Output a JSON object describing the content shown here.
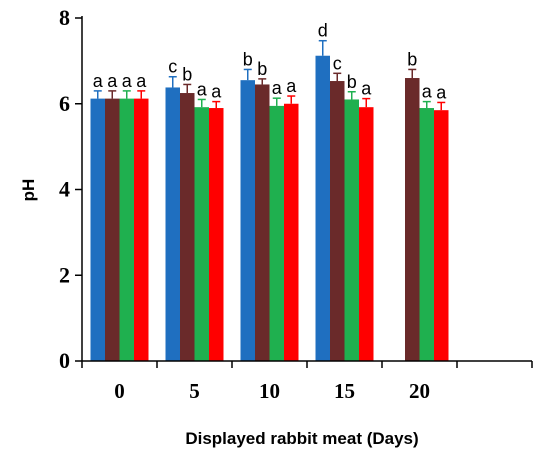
{
  "chart_data": {
    "type": "bar",
    "title": "",
    "xlabel": "Displayed rabbit meat (Days)",
    "ylabel": "pH",
    "ylim": [
      0,
      8
    ],
    "yticks": [
      "0",
      "2",
      "4",
      "6",
      "8"
    ],
    "categories": [
      "0",
      "5",
      "10",
      "15",
      "20"
    ],
    "grid": false,
    "legend": "none",
    "series": [
      {
        "color": "#1f6fc0",
        "values": [
          6.12,
          6.38,
          6.55,
          7.12,
          null
        ],
        "errors": [
          0.18,
          0.25,
          0.25,
          0.35,
          null
        ],
        "letters": [
          "a",
          "c",
          "b",
          "d",
          ""
        ]
      },
      {
        "color": "#6a2a2a",
        "values": [
          6.12,
          6.25,
          6.45,
          6.53,
          6.6
        ],
        "errors": [
          0.18,
          0.2,
          0.13,
          0.18,
          0.2
        ],
        "letters": [
          "a",
          "b",
          "b",
          "c",
          "b"
        ]
      },
      {
        "color": "#1fb04f",
        "values": [
          6.12,
          5.92,
          5.95,
          6.1,
          5.9
        ],
        "errors": [
          0.18,
          0.18,
          0.18,
          0.18,
          0.15
        ],
        "letters": [
          "a",
          "a",
          "a",
          "b",
          "a"
        ]
      },
      {
        "color": "#ff0000",
        "values": [
          6.12,
          5.9,
          6.0,
          5.92,
          5.85
        ],
        "errors": [
          0.18,
          0.15,
          0.18,
          0.2,
          0.18
        ],
        "letters": [
          "a",
          "a",
          "a",
          "a",
          "a"
        ]
      }
    ]
  }
}
